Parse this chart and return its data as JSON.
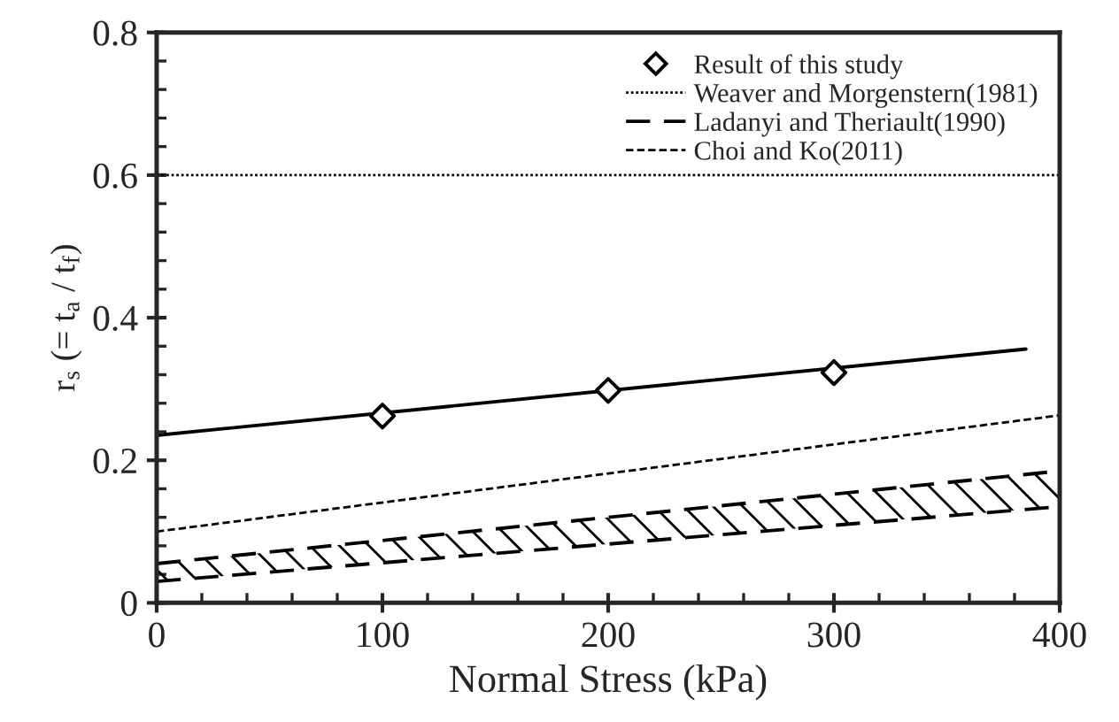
{
  "chart_data": {
    "type": "line",
    "xlabel": "Normal Stress (kPa)",
    "ylabel": "r$_{s}$ (= t$_{a}$ / t$_{f}$)",
    "xlim": [
      0,
      400
    ],
    "ylim": [
      0,
      0.8
    ],
    "xticks": [
      0,
      100,
      200,
      300,
      400
    ],
    "yticks": [
      0,
      0.2,
      0.4,
      0.6,
      0.8
    ],
    "grid": false,
    "legend": "top right",
    "series": [
      {
        "name": "Result of this study",
        "type": "scatter",
        "marker": "diamond",
        "color": "#000000",
        "x": [
          100,
          200,
          300
        ],
        "values": [
          0.262,
          0.298,
          0.323
        ]
      },
      {
        "line_style": "solid",
        "color": "#000000",
        "x": [
          0,
          385
        ],
        "values": [
          0.235,
          0.356
        ]
      },
      {
        "name": "Weaver and Morgenstern(1981)",
        "line_style": "dotted",
        "color": "#000000",
        "x": [
          0,
          400
        ],
        "values": [
          0.6,
          0.6
        ]
      },
      {
        "name": "Ladanyi and Theriault(1990)",
        "line_style": "dashed",
        "color": "#000000",
        "x": [
          0,
          400
        ],
        "values": [
          0.055,
          0.185
        ],
        "lower": [
          0.03,
          0.135
        ],
        "upper": [
          0.055,
          0.185
        ]
      },
      {
        "line_style": "dashed",
        "color": "#000000",
        "x": [
          0,
          400
        ],
        "values": [
          0.03,
          0.135
        ]
      },
      {
        "name": "Choi and Ko(2011)",
        "line_style": "densely dashed",
        "color": "#000000",
        "x": [
          0,
          400
        ],
        "values": [
          0.1,
          0.263
        ]
      }
    ]
  }
}
